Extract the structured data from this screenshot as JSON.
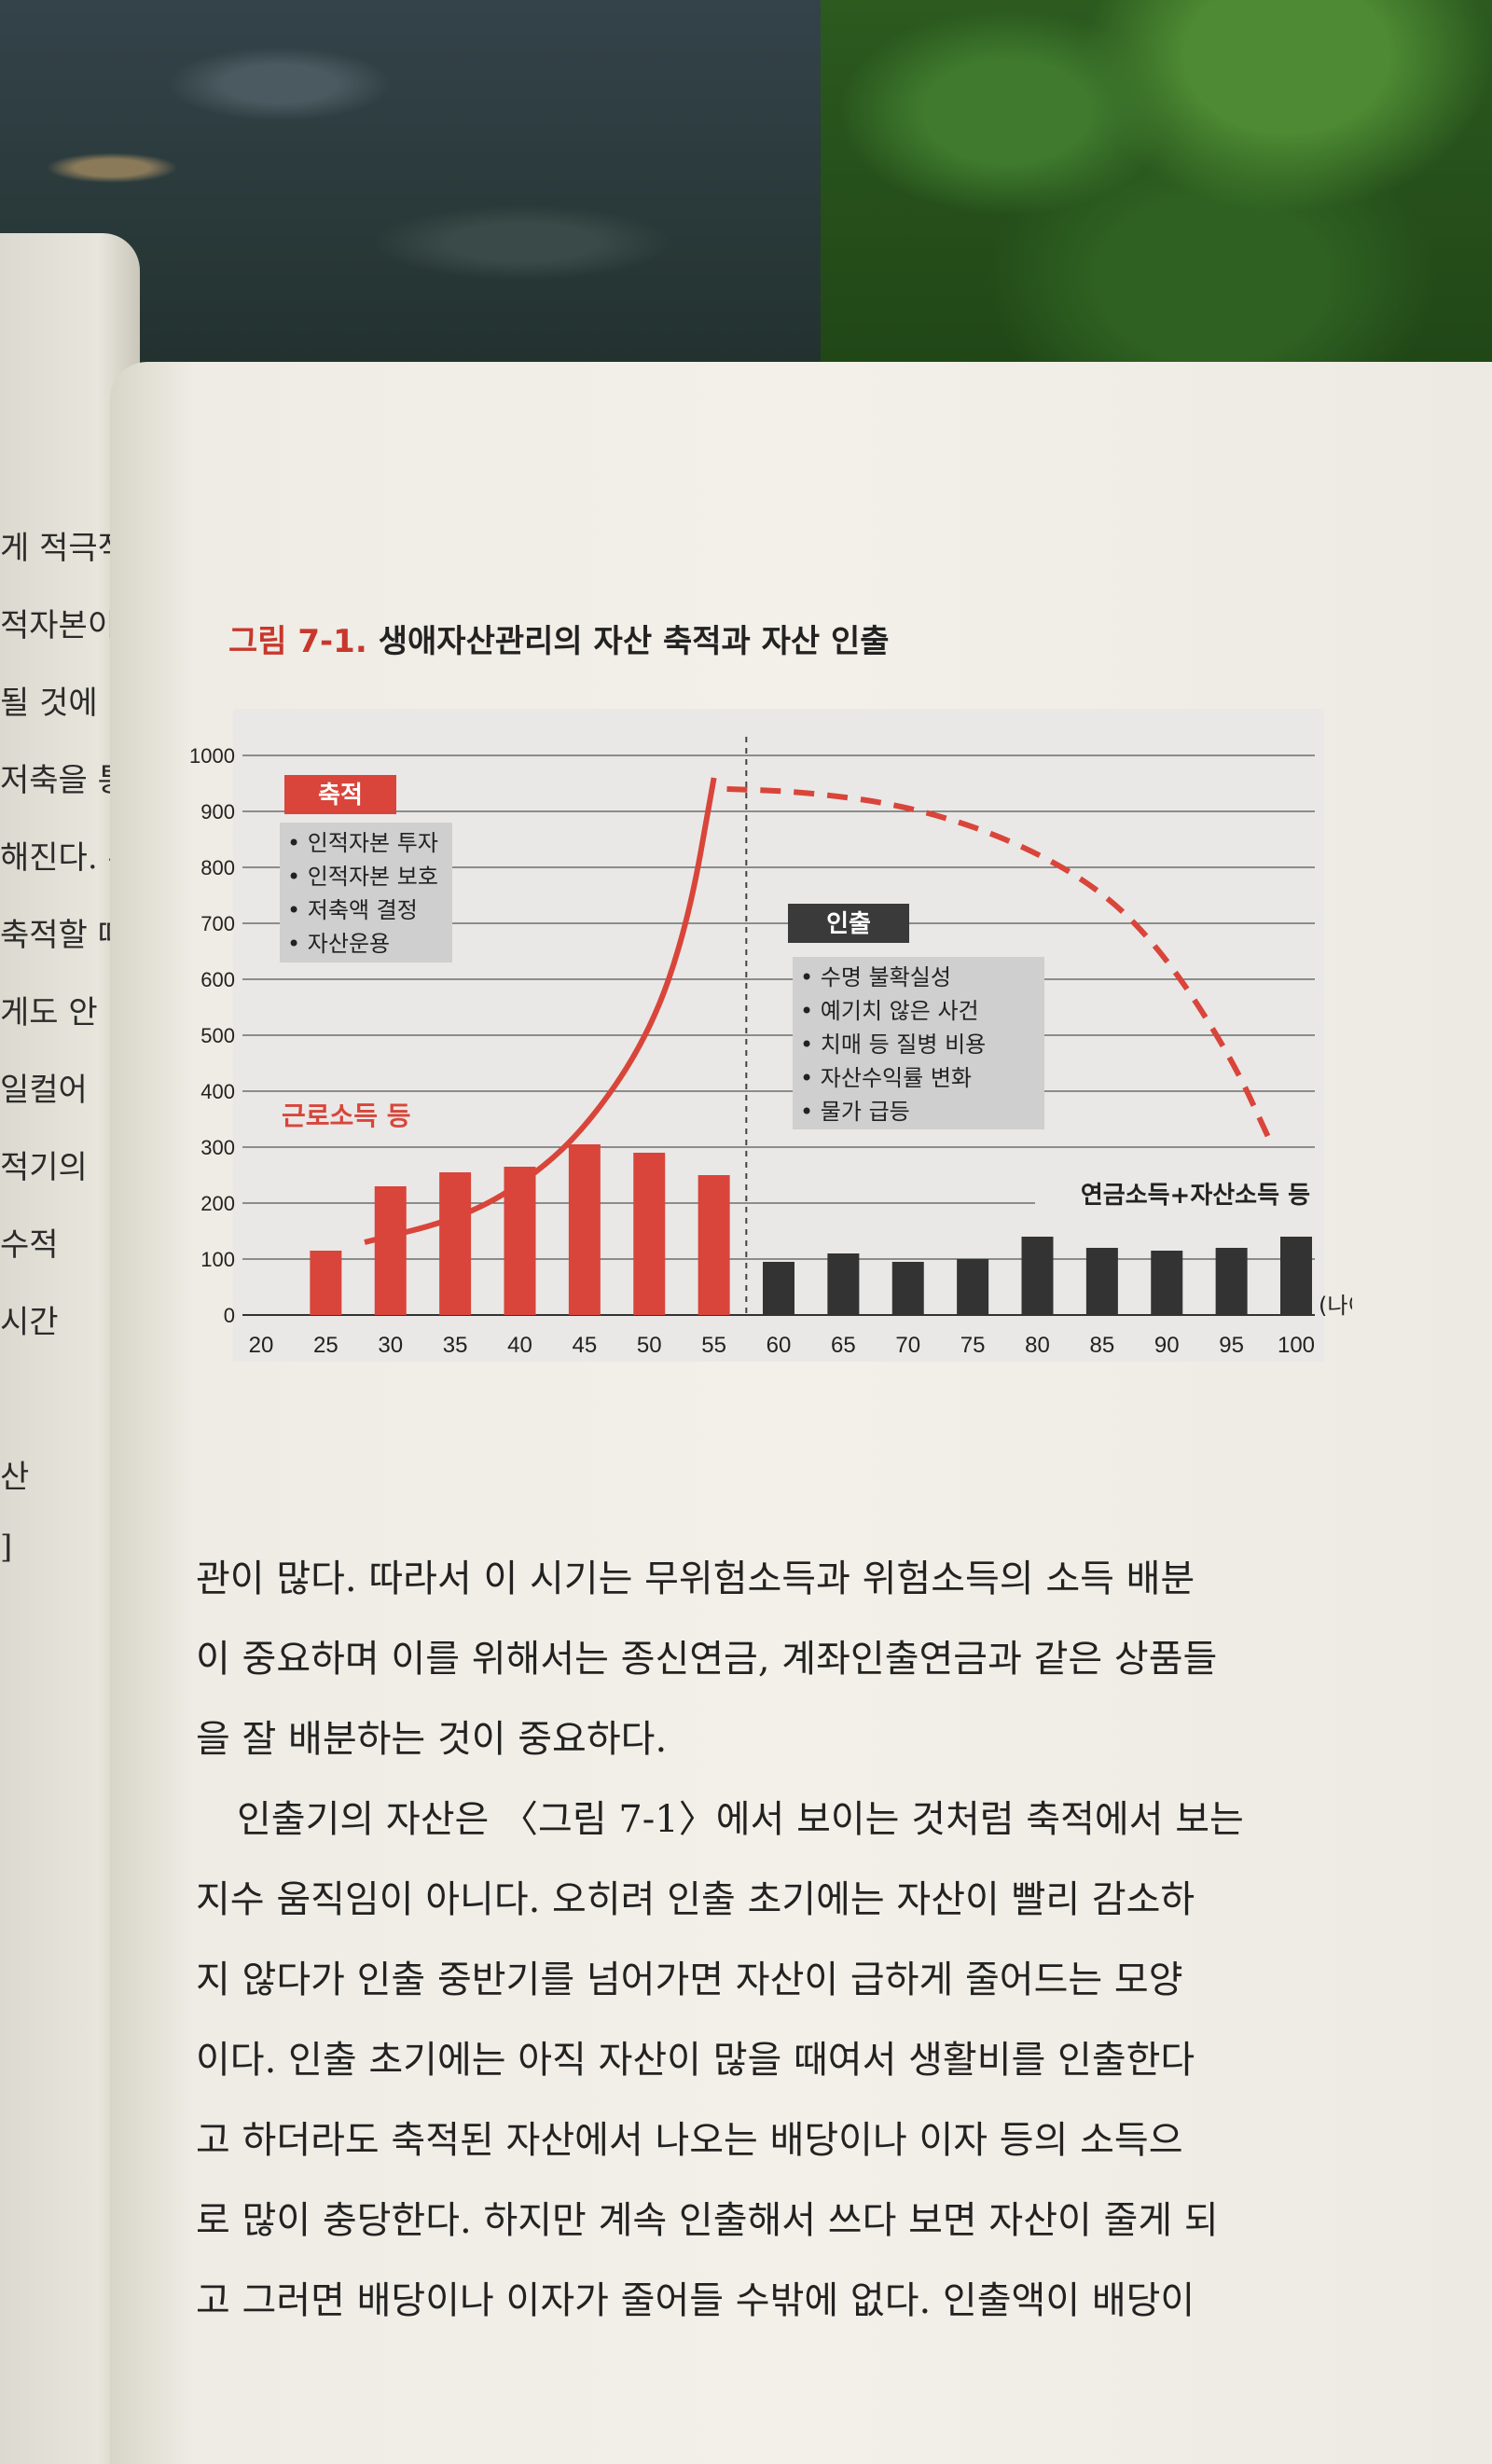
{
  "left_page": {
    "lines": [
      "게 적극적으",
      "적자본이 손상",
      "될 것에 대비",
      "저축을 통해",
      "해진다. 주",
      "축적할 때",
      "게도 안",
      "일컬어",
      "적기의",
      "수적",
      "시간",
      "",
      "산",
      "]"
    ]
  },
  "figure": {
    "number": "그림 7-1.",
    "title": "생애자산관리의 자산 축적과 자산 인출"
  },
  "chart_data": {
    "type": "bar",
    "categories": [
      "20",
      "25",
      "30",
      "35",
      "40",
      "45",
      "50",
      "55",
      "60",
      "65",
      "70",
      "75",
      "80",
      "85",
      "90",
      "95",
      "100"
    ],
    "bar_x": [
      25,
      30,
      35,
      40,
      45,
      50,
      55,
      60,
      65,
      70,
      75,
      80,
      85,
      90,
      95,
      100
    ],
    "series": [
      {
        "name": "근로소득 등",
        "color": "#d9453a",
        "x": [
          25,
          30,
          35,
          40,
          45,
          50,
          55
        ],
        "values": [
          115,
          230,
          255,
          265,
          305,
          290,
          250
        ]
      },
      {
        "name": "연금소득+자산소득 등",
        "color": "#333333",
        "x": [
          60,
          65,
          70,
          75,
          80,
          85,
          90,
          95,
          100
        ],
        "values": [
          95,
          110,
          95,
          100,
          140,
          120,
          115,
          120,
          140
        ]
      }
    ],
    "curves": [
      {
        "label": "축적",
        "style": "solid",
        "color": "#d9453a",
        "points": [
          [
            28,
            130
          ],
          [
            35,
            170
          ],
          [
            40,
            230
          ],
          [
            45,
            330
          ],
          [
            50,
            500
          ],
          [
            53,
            700
          ],
          [
            55,
            960
          ]
        ]
      },
      {
        "label": "인출",
        "style": "dashed",
        "color": "#d9453a",
        "points": [
          [
            56,
            940
          ],
          [
            62,
            935
          ],
          [
            70,
            910
          ],
          [
            78,
            850
          ],
          [
            85,
            760
          ],
          [
            90,
            640
          ],
          [
            95,
            460
          ],
          [
            98,
            310
          ]
        ]
      }
    ],
    "ylim": [
      0,
      1000
    ],
    "yticks": [
      0,
      100,
      200,
      300,
      400,
      500,
      600,
      700,
      800,
      900,
      1000
    ],
    "xlim": [
      20,
      100
    ],
    "xunit": "(나이)",
    "divider_x": 57.5,
    "grid": true,
    "annotations": {
      "accumulation": {
        "label": "축적",
        "items": [
          "• 인적자본 투자",
          "• 인적자본 보호",
          "• 저축액 결정",
          "• 자산운용"
        ]
      },
      "withdrawal": {
        "label": "인출",
        "items": [
          "• 수명 불확실성",
          "• 예기치 않은 사건",
          "• 치매 등 질병 비용",
          "• 자산수익률 변화",
          "• 물가 급등"
        ]
      },
      "income_work": "근로소득 등",
      "income_retire": "연금소득+자산소득 등"
    }
  },
  "body": {
    "lines": [
      "관이 많다. 따라서 이 시기는 무위험소득과 위험소득의 소득 배분",
      "이 중요하며 이를 위해서는 종신연금, 계좌인출연금과 같은 상품들",
      "을 잘 배분하는 것이 중요하다.",
      "인출기의 자산은 〈그림 7-1〉에서 보이는 것처럼 축적에서 보는",
      "지수 움직임이 아니다. 오히려 인출 초기에는 자산이 빨리 감소하",
      "지 않다가 인출 중반기를 넘어가면 자산이 급하게 줄어드는 모양",
      "이다. 인출 초기에는 아직 자산이 많을 때여서 생활비를 인출한다",
      "고 하더라도 축적된 자산에서 나오는 배당이나 이자 등의 소득으",
      "로 많이 충당한다. 하지만 계속 인출해서 쓰다 보면 자산이 줄게 되",
      "고 그러면 배당이나 이자가 줄어들 수밖에 없다. 인출액이 배당이"
    ]
  }
}
